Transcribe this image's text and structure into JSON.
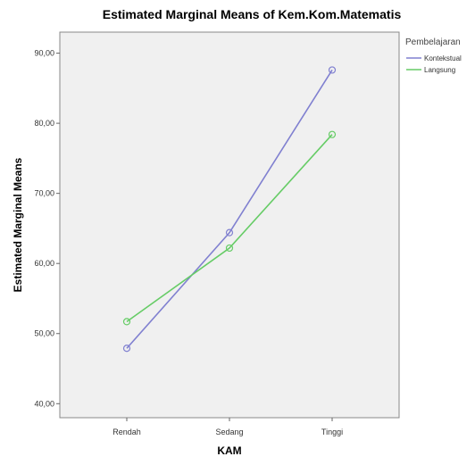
{
  "chart_data": {
    "type": "line",
    "title": "Estimated Marginal Means of Kem.Kom.Matematis",
    "xlabel": "KAM",
    "ylabel": "Estimated Marginal Means",
    "categories": [
      "Rendah",
      "Sedang",
      "Tinggi"
    ],
    "yticks": [
      "40,00",
      "50,00",
      "60,00",
      "70,00",
      "80,00",
      "90,00"
    ],
    "ylim": [
      38,
      93
    ],
    "grid": false,
    "legend": {
      "title": "Pembelajaran",
      "placement": "top-right outside"
    },
    "series": [
      {
        "name": "Kontekstual",
        "color": "#8080d0",
        "values": [
          47.9,
          64.4,
          87.6
        ]
      },
      {
        "name": "Langsung",
        "color": "#66cc66",
        "values": [
          51.7,
          62.2,
          78.4
        ]
      }
    ],
    "plot_background": "#f0f0f0"
  }
}
